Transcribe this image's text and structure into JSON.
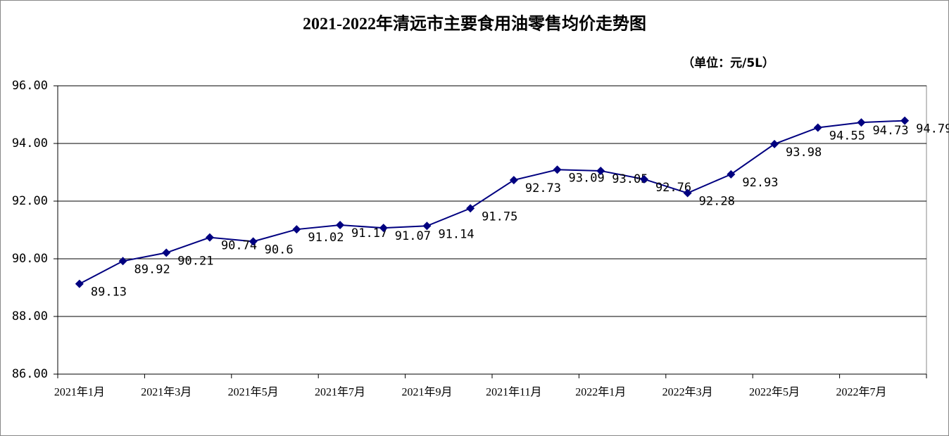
{
  "chart_data": {
    "type": "line",
    "title": "2021-2022年清远市主要食用油零售均价走势图",
    "unit": "（单位：元/5L）",
    "categories": [
      "2021年1月",
      null,
      "2021年3月",
      null,
      "2021年5月",
      null,
      "2021年7月",
      null,
      "2021年9月",
      null,
      "2021年11月",
      null,
      "2022年1月",
      null,
      "2022年3月",
      null,
      "2022年5月",
      null,
      "2022年7月",
      null
    ],
    "series": [
      {
        "color": "#000080",
        "values": [
          89.13,
          89.92,
          90.21,
          90.74,
          90.6,
          91.02,
          91.17,
          91.07,
          91.14,
          91.75,
          92.73,
          93.09,
          93.05,
          92.76,
          92.28,
          92.93,
          93.98,
          94.55,
          94.73,
          94.79
        ]
      }
    ],
    "ylim": [
      86,
      96
    ],
    "yticks": [
      {
        "value": 86,
        "label": "86.00"
      },
      {
        "value": 88,
        "label": "88.00"
      },
      {
        "value": 90,
        "label": "90.00"
      },
      {
        "value": 92,
        "label": "92.00"
      },
      {
        "value": 94,
        "label": "94.00"
      },
      {
        "value": 96,
        "label": "96.00"
      }
    ],
    "grid": true
  }
}
